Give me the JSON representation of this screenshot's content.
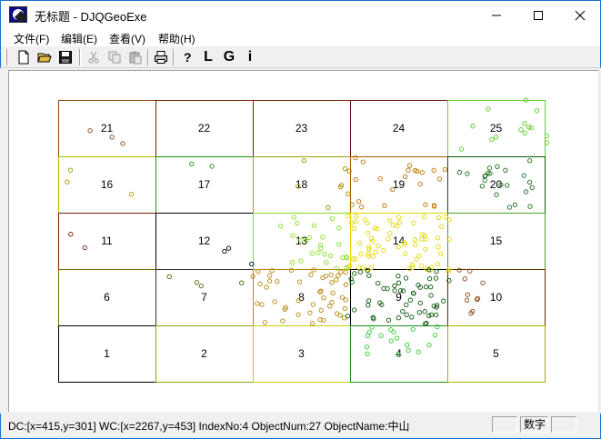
{
  "window": {
    "title": "无标题 - DJQGeoExe",
    "minimize_label": "Minimize",
    "maximize_label": "Maximize",
    "close_label": "Close"
  },
  "menu": [
    {
      "label": "文件(F)"
    },
    {
      "label": "编辑(E)"
    },
    {
      "label": "查看(V)"
    },
    {
      "label": "帮助(H)"
    }
  ],
  "toolbar": {
    "buttons": [
      {
        "icon": "new-document-icon"
      },
      {
        "icon": "open-folder-icon"
      },
      {
        "icon": "save-disk-icon"
      },
      {
        "icon": "cut-scissors-icon",
        "enabled": false
      },
      {
        "icon": "copy-icon",
        "enabled": false
      },
      {
        "icon": "paste-clipboard-icon",
        "enabled": false
      },
      {
        "icon": "print-icon"
      },
      {
        "icon": "help-context-icon"
      }
    ],
    "letters": [
      "L",
      "G",
      "i"
    ]
  },
  "grid": {
    "cells": [
      {
        "number": "21",
        "color": "#8b4513"
      },
      {
        "number": "22",
        "color": "#7a1e00"
      },
      {
        "number": "23",
        "color": "#7a1e00"
      },
      {
        "number": "24",
        "color": "#6b0f0f"
      },
      {
        "number": "25",
        "color": "#66cc33"
      },
      {
        "number": "16",
        "color": "#b8b800"
      },
      {
        "number": "17",
        "color": "#1a8f1a"
      },
      {
        "number": "18",
        "color": "#a0a000"
      },
      {
        "number": "19",
        "color": "#a06000"
      },
      {
        "number": "20",
        "color": "#0a5a0a"
      },
      {
        "number": "11",
        "color": "#7a1e00"
      },
      {
        "number": "12",
        "color": "#000000"
      },
      {
        "number": "13",
        "color": "#88dd22"
      },
      {
        "number": "14",
        "color": "#e6d600"
      },
      {
        "number": "15",
        "color": "#4aa02a"
      },
      {
        "number": "6",
        "color": "#7a6a00"
      },
      {
        "number": "7",
        "color": "#333333"
      },
      {
        "number": "8",
        "color": "#b88a00"
      },
      {
        "number": "9",
        "color": "#000000"
      },
      {
        "number": "10",
        "color": "#5a3000"
      },
      {
        "number": "1",
        "color": "#000000"
      },
      {
        "number": "2",
        "color": "#88aa00"
      },
      {
        "number": "3",
        "color": "#cccc00"
      },
      {
        "number": "4",
        "color": "#228b22"
      },
      {
        "number": "5",
        "color": "#aaaa00"
      }
    ]
  },
  "points": [
    {
      "cell": "25",
      "color": "#55cc22"
    },
    {
      "cell": "20",
      "color": "#1a6b1a"
    },
    {
      "cell": "19",
      "color": "#c07000"
    },
    {
      "cell": "14",
      "color": "#e6d600"
    },
    {
      "cell": "13",
      "color": "#88dd22"
    },
    {
      "cell": "8",
      "color": "#b8860b"
    },
    {
      "cell": "9",
      "color": "#0a5a0a"
    },
    {
      "cell": "4",
      "color": "#33cc33"
    },
    {
      "cell": "18",
      "color": "#a09000"
    },
    {
      "cell": "10",
      "color": "#8b4513"
    },
    {
      "cell": "21",
      "color": "#8b4513"
    },
    {
      "cell": "16",
      "color": "#a0a000"
    },
    {
      "cell": "17",
      "color": "#1a8f1a"
    },
    {
      "cell": "11",
      "color": "#7a1e00"
    },
    {
      "cell": "12",
      "color": "#000000"
    },
    {
      "cell": "7",
      "color": "#4a6a00"
    }
  ],
  "status": {
    "text": "DC:[x=415,y=301]   WC:[x=2267,y=453]    IndexNo:4   ObjectNum:27  ObjectName:中山",
    "pane_empty": "",
    "pane_mode": "数字"
  }
}
